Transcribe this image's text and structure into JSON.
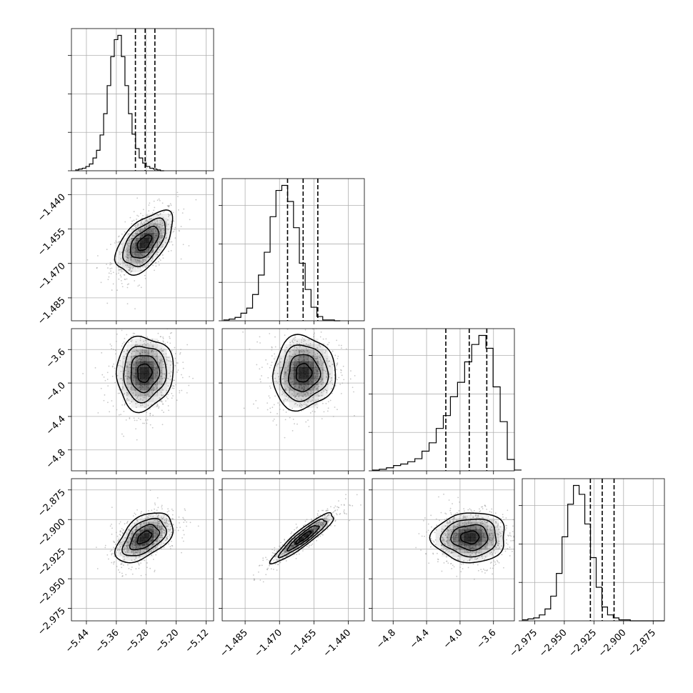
{
  "chart_data": {
    "type": "corner",
    "grid": true,
    "parameters": [
      {
        "range": [
          -5.48,
          -5.1
        ],
        "ticks": [
          "−5.44",
          "−5.36",
          "−5.28",
          "−5.20",
          "−5.12"
        ],
        "tick_values": [
          -5.44,
          -5.36,
          -5.28,
          -5.2,
          -5.12
        ],
        "quantiles": [
          -5.309,
          -5.283,
          -5.257
        ],
        "histogram": {
          "bin_start": -5.47,
          "bin_width": 0.0095,
          "counts": [
            1,
            2,
            3,
            5,
            8,
            15,
            24,
            42,
            67,
            100,
            134,
            154,
            159,
            134,
            100,
            67,
            43,
            26,
            15,
            9,
            5,
            3,
            2,
            1,
            0
          ]
        },
        "ellipse_center": -5.285,
        "ellipse_sd": 0.038
      },
      {
        "range": [
          -1.495,
          -1.433
        ],
        "ticks": [
          "−1.485",
          "−1.470",
          "−1.455",
          "−1.440"
        ],
        "tick_values": [
          -1.485,
          -1.47,
          -1.455,
          -1.44
        ],
        "quantiles": [
          -1.4665,
          -1.4597,
          -1.4533
        ],
        "histogram": {
          "bin_start": -1.4945,
          "bin_width": 0.00255,
          "counts": [
            1,
            2,
            4,
            9,
            15,
            31,
            54,
            81,
            123,
            154,
            160,
            141,
            110,
            68,
            37,
            16,
            5,
            1,
            1,
            0
          ]
        },
        "ellipse_center": -1.46,
        "ellipse_sd": 0.0065
      },
      {
        "range": [
          -5.05,
          -3.35
        ],
        "ticks": [
          "−4.8",
          "−4.4",
          "−4.0",
          "−3.6"
        ],
        "tick_values": [
          -4.8,
          -4.4,
          -4.0,
          -3.6
        ],
        "quantiles": [
          -4.17,
          -3.89,
          -3.68
        ],
        "histogram": {
          "bin_start": -5.05,
          "bin_width": 0.085,
          "counts": [
            1,
            2,
            4,
            7,
            9,
            12,
            16,
            26,
            37,
            56,
            73,
            98,
            117,
            144,
            167,
            179,
            162,
            111,
            65,
            15,
            1
          ]
        },
        "ellipse_center": -3.93,
        "ellipse_sd": 0.24
      },
      {
        "range": [
          -2.9855,
          -2.8655
        ],
        "ticks": [
          "−2.975",
          "−2.950",
          "−2.925",
          "−2.900",
          "−2.875"
        ],
        "tick_values": [
          -2.975,
          -2.95,
          -2.925,
          -2.9,
          -2.875
        ],
        "quantiles": [
          -2.928,
          -2.918,
          -2.908
        ],
        "histogram": {
          "bin_start": -2.9855,
          "bin_width": 0.0048,
          "counts": [
            1,
            2,
            3,
            6,
            12,
            25,
            48,
            85,
            118,
            137,
            128,
            98,
            64,
            34,
            14,
            6,
            3,
            1,
            1,
            0,
            0,
            0,
            0,
            0,
            0
          ]
        },
        "ellipse_center": -2.918,
        "ellipse_sd": 0.01
      }
    ],
    "pairs": [
      {
        "row": 1,
        "col": 0,
        "center": [
          -5.285,
          -1.461
        ],
        "sd": [
          0.038,
          0.0068
        ],
        "corr": 0.55
      },
      {
        "row": 2,
        "col": 0,
        "center": [
          -5.285,
          -3.88
        ],
        "sd": [
          0.038,
          0.22
        ],
        "corr": 0.05
      },
      {
        "row": 2,
        "col": 1,
        "center": [
          -1.4595,
          -3.88
        ],
        "sd": [
          0.0068,
          0.22
        ],
        "corr": 0.05
      },
      {
        "row": 3,
        "col": 0,
        "center": [
          -5.285,
          -2.915
        ],
        "sd": [
          0.038,
          0.0105
        ],
        "corr": 0.5
      },
      {
        "row": 3,
        "col": 1,
        "center": [
          -1.4595,
          -2.915
        ],
        "sd": [
          0.0068,
          0.0105
        ],
        "corr": 0.92
      },
      {
        "row": 3,
        "col": 2,
        "center": [
          -3.88,
          -2.915
        ],
        "sd": [
          0.22,
          0.0105
        ],
        "corr": 0.02
      }
    ],
    "contour_levels_sigma": [
      0.5,
      1.0,
      1.5,
      2.0
    ],
    "colors": {
      "line": "#000000",
      "grid": "#b0b0b0",
      "points": "#9a9a9a",
      "density": "#000000"
    }
  }
}
